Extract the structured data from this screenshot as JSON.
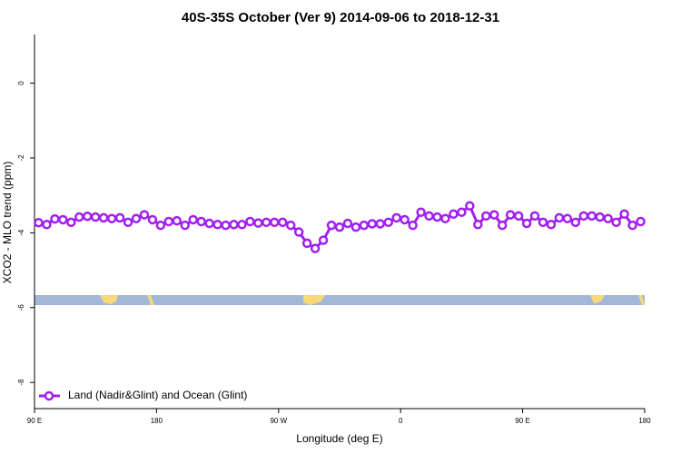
{
  "chart_data": {
    "type": "line",
    "title": "40S-35S October (Ver 9)   2014-09-06 to 2018-12-31",
    "x_label": "Longitude (deg E)",
    "y_label": "XCO2 - MLO trend (ppm)",
    "xlim": [
      90,
      540
    ],
    "ylim": [
      -8.7,
      1.3
    ],
    "xticks": [
      {
        "value": 90,
        "label": "90 E"
      },
      180,
      {
        "value": 270,
        "label": "90 W"
      },
      {
        "value": 360,
        "label": "0"
      },
      {
        "value": 450,
        "label": "90 E"
      },
      {
        "value": 540,
        "label": "180"
      }
    ],
    "yticks": [
      0,
      -2,
      -4,
      -6,
      -8
    ],
    "legend": "bottom-left",
    "x": [
      93,
      99,
      105,
      111,
      117,
      123,
      129,
      135,
      141,
      147,
      153,
      159,
      165,
      171,
      177,
      183,
      189,
      195,
      201,
      207,
      213,
      219,
      225,
      231,
      237,
      243,
      249,
      255,
      261,
      267,
      273,
      279,
      285,
      291,
      297,
      303,
      309,
      315,
      321,
      327,
      333,
      339,
      345,
      351,
      357,
      363,
      369,
      375,
      381,
      387,
      393,
      399,
      405,
      411,
      417,
      423,
      429,
      435,
      441,
      447,
      453,
      459,
      465,
      471,
      477,
      483,
      489,
      495,
      501,
      507,
      513,
      519,
      525,
      531,
      537
    ],
    "series": [
      {
        "name": "Land (Nadir&Glint) and Ocean (Glint)",
        "color": "#a020f0",
        "values": [
          -3.73,
          -3.78,
          -3.63,
          -3.65,
          -3.72,
          -3.58,
          -3.56,
          -3.58,
          -3.6,
          -3.62,
          -3.6,
          -3.72,
          -3.62,
          -3.52,
          -3.65,
          -3.8,
          -3.7,
          -3.68,
          -3.8,
          -3.65,
          -3.7,
          -3.75,
          -3.78,
          -3.8,
          -3.78,
          -3.78,
          -3.7,
          -3.74,
          -3.72,
          -3.72,
          -3.72,
          -3.8,
          -3.98,
          -4.28,
          -4.42,
          -4.2,
          -3.8,
          -3.85,
          -3.75,
          -3.85,
          -3.8,
          -3.76,
          -3.76,
          -3.72,
          -3.6,
          -3.65,
          -3.8,
          -3.45,
          -3.55,
          -3.58,
          -3.62,
          -3.5,
          -3.45,
          -3.28,
          -3.78,
          -3.55,
          -3.52,
          -3.8,
          -3.52,
          -3.55,
          -3.75,
          -3.55,
          -3.72,
          -3.78,
          -3.6,
          -3.62,
          -3.72,
          -3.55,
          -3.55,
          -3.58,
          -3.62,
          -3.72,
          -3.5,
          -3.8,
          -3.7
        ]
      }
    ]
  }
}
